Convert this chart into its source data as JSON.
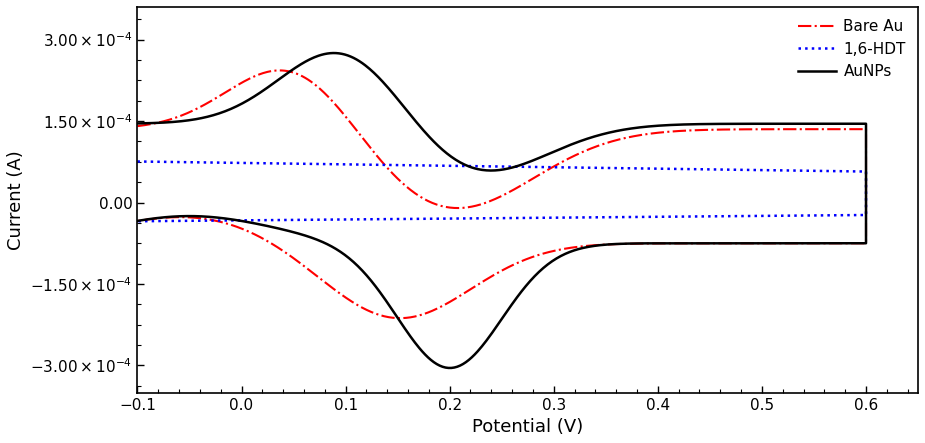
{
  "xlabel": "Potential (V)",
  "ylabel": "Current (A)",
  "xlim": [
    -0.1,
    0.65
  ],
  "ylim": [
    -0.00035,
    0.00036
  ],
  "xticks": [
    -0.1,
    0.0,
    0.1,
    0.2,
    0.3,
    0.4,
    0.5,
    0.6
  ],
  "xtick_labels": [
    "-0.1",
    "0.0",
    "0.1",
    "0.2",
    "0.3",
    "0.4",
    "0.5",
    "0.6"
  ],
  "ytick_labels": [
    "-3.00×10⁻⁴",
    "-1.50×10⁻⁴",
    "0.00",
    "1.50×10⁻⁴",
    "3.00×10⁻⁴"
  ],
  "legend": [
    "Bare Au",
    "1,6-HDT",
    "AuNPs"
  ],
  "legend_colors": [
    "red",
    "blue",
    "black"
  ],
  "legend_styles": [
    "dashdot",
    "dotted",
    "solid"
  ],
  "background_color": "#ffffff",
  "figsize": [
    9.25,
    4.43
  ],
  "dpi": 100
}
